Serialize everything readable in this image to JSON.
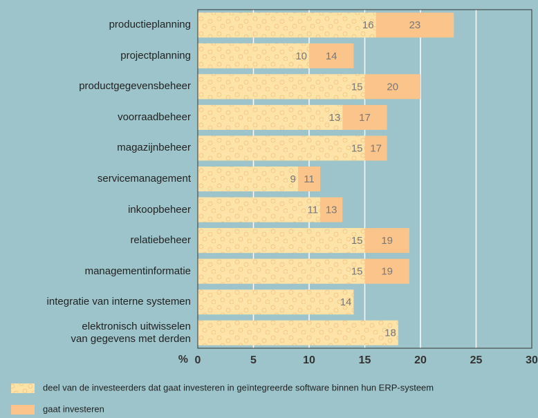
{
  "chart_data": {
    "type": "bar",
    "orientation": "horizontal",
    "categories": [
      "productieplanning",
      "projectplanning",
      "productgegevensbeheer",
      "voorraadbeheer",
      "magazijnbeheer",
      "servicemanagement",
      "inkoopbeheer",
      "relatiebeheer",
      "managementinformatie",
      "integratie van interne systemen",
      "elektronisch uitwisselen\nvan gegevens met derden"
    ],
    "series": [
      {
        "name": "deel van de investeerders dat gaat investeren in geïntegreerde software binnen hun ERP-systeem",
        "color": "#fde3a8",
        "values": [
          16,
          10,
          15,
          13,
          15,
          9,
          11,
          15,
          15,
          14,
          18
        ]
      },
      {
        "name": "gaat investeren",
        "color": "#fbc48b",
        "values": [
          23,
          14,
          20,
          17,
          17,
          11,
          13,
          19,
          19,
          null,
          null
        ]
      }
    ],
    "x_label": "%",
    "xlim": [
      0,
      30
    ],
    "xticks": [
      0,
      5,
      10,
      15,
      20,
      25,
      30
    ],
    "grid": true
  }
}
